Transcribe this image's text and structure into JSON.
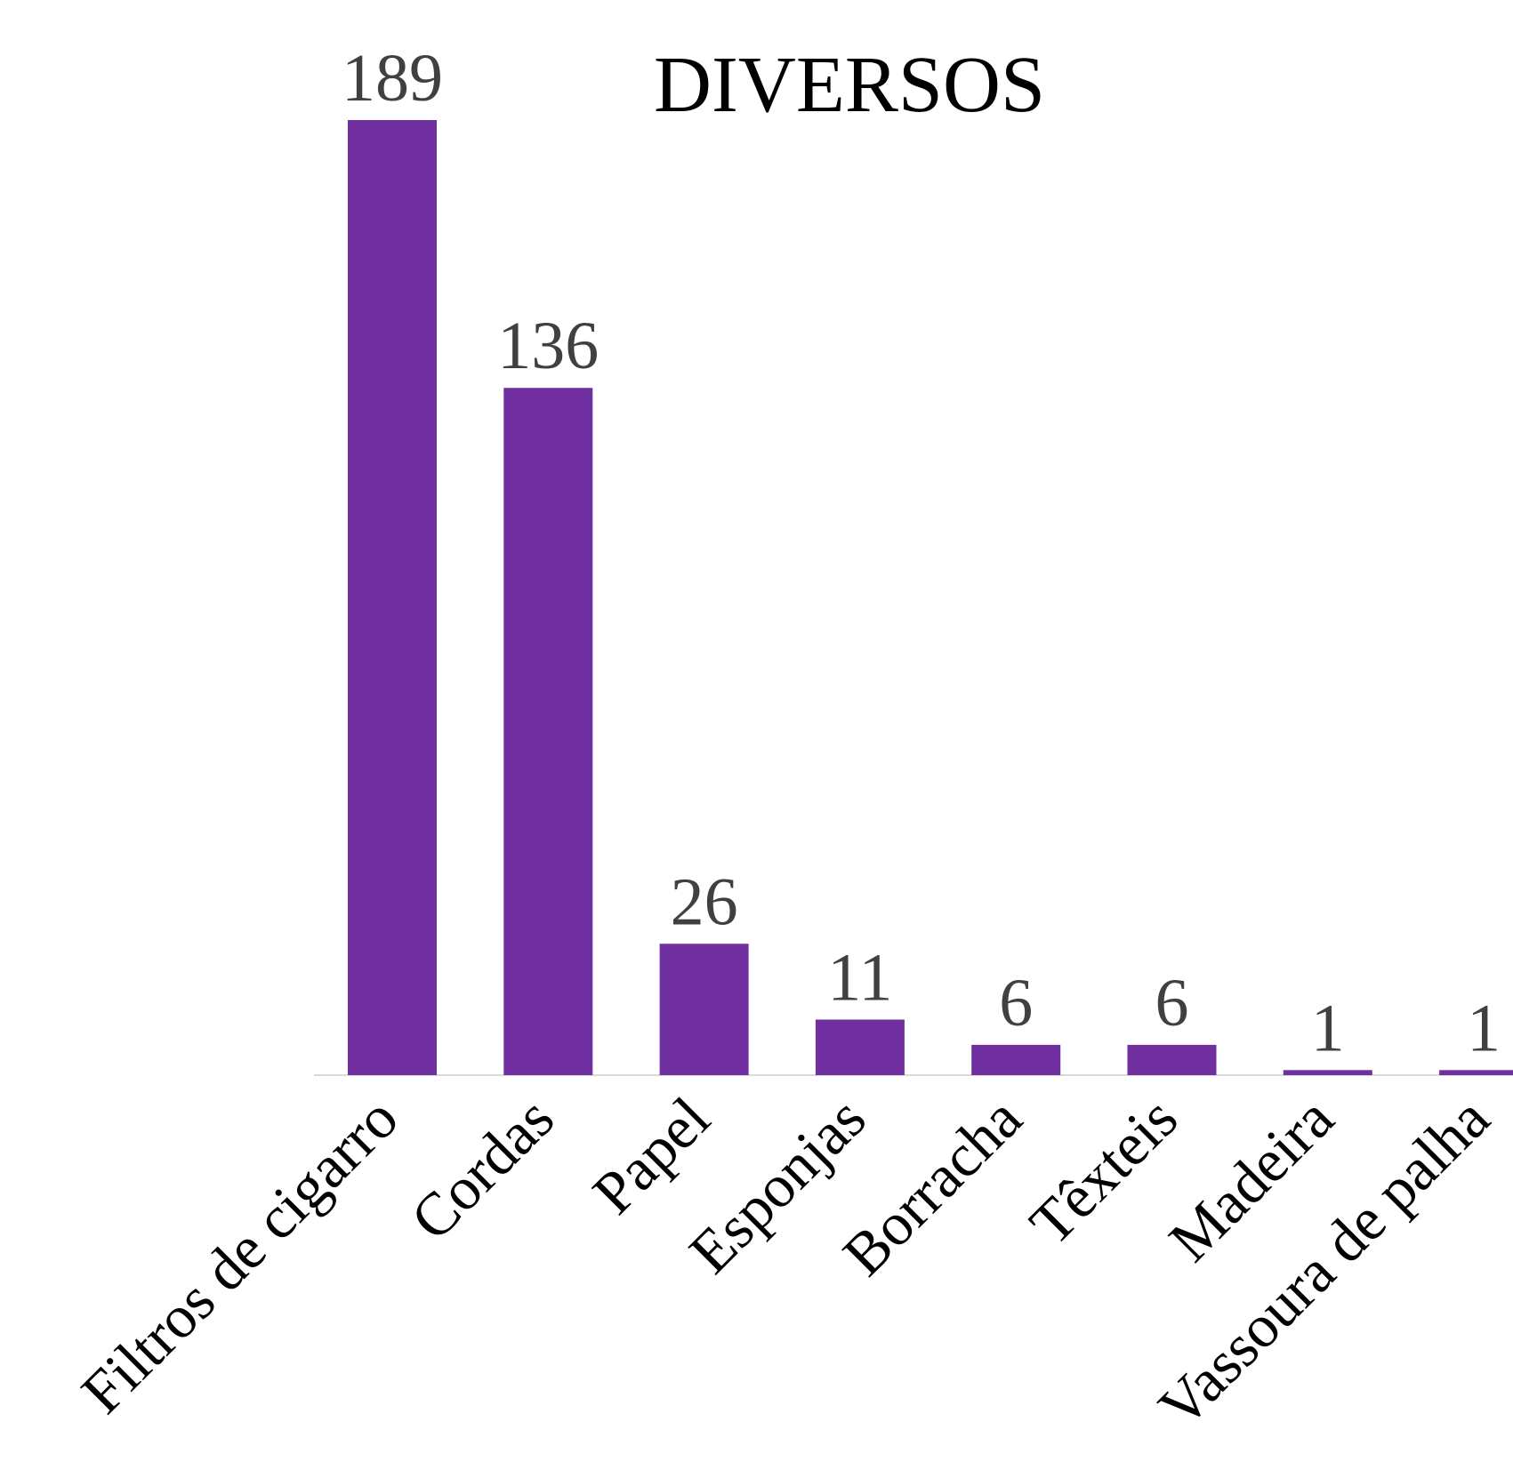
{
  "chart_data": {
    "type": "bar",
    "title": "DIVERSOS",
    "xlabel": "",
    "ylabel": "",
    "categories": [
      "Filtros de cigarro",
      "Cordas",
      "Papel",
      "Esponjas",
      "Borracha",
      "Têxteis",
      "Madeira",
      "Vassoura de palha"
    ],
    "values": [
      189,
      136,
      26,
      11,
      6,
      6,
      1,
      1
    ],
    "data_labels": [
      "189",
      "136",
      "26",
      "11",
      "6",
      "6",
      "1",
      "1"
    ],
    "ylim": [
      0,
      189
    ],
    "grid": false,
    "legend": "none",
    "bar_color": "#7030A0",
    "axis_color": "#D9D9D9",
    "label_color": "#404040"
  }
}
